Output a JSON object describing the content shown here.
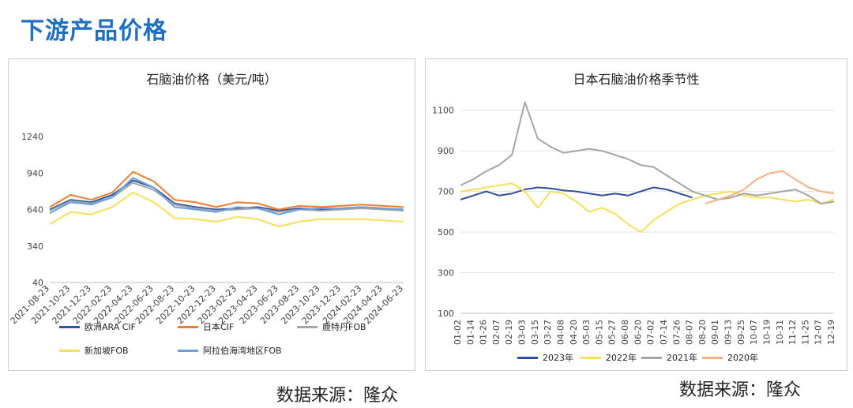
{
  "header": {
    "title": "下游产品价格"
  },
  "source_text": "数据来源：隆众",
  "colors": {
    "title": "#1f6fc5"
  },
  "chart_data": [
    {
      "type": "line",
      "title": "石脑油价格（美元/吨）",
      "ylim": [
        40,
        1240
      ],
      "yticks": [
        "1240",
        "940",
        "640",
        "340",
        "40"
      ],
      "ytick_values": [
        1240,
        940,
        640,
        340,
        40
      ],
      "x": [
        "2021-08-23",
        "2021-10-23",
        "2021-12-23",
        "2022-02-23",
        "2022-04-23",
        "2022-06-23",
        "2022-08-23",
        "2022-10-23",
        "2022-12-23",
        "2023-02-23",
        "2023-04-23",
        "2023-06-23",
        "2023-08-23",
        "2023-10-23",
        "2023-12-23",
        "2024-02-23",
        "2024-04-23",
        "2024-06-23"
      ],
      "series": [
        {
          "name": "欧洲ARA CIF",
          "color": "#2f54a4",
          "values": [
            640,
            720,
            700,
            760,
            880,
            820,
            690,
            660,
            640,
            650,
            660,
            630,
            650,
            640,
            650,
            660,
            650,
            640
          ]
        },
        {
          "name": "日本CIF",
          "color": "#ed7d31",
          "values": [
            660,
            760,
            720,
            780,
            950,
            870,
            720,
            700,
            660,
            700,
            690,
            640,
            670,
            660,
            670,
            680,
            670,
            660
          ]
        },
        {
          "name": "鹿特丹FOB",
          "color": "#a5a5a5",
          "values": [
            630,
            710,
            690,
            740,
            860,
            800,
            680,
            650,
            630,
            640,
            650,
            620,
            640,
            630,
            640,
            650,
            640,
            630
          ]
        },
        {
          "name": "新加坡FOB",
          "color": "#f5e05a",
          "values": [
            520,
            620,
            600,
            660,
            780,
            700,
            570,
            560,
            540,
            580,
            560,
            500,
            540,
            560,
            560,
            560,
            550,
            540
          ]
        },
        {
          "name": "阿拉伯海湾地区FOB",
          "color": "#6aa1dc",
          "values": [
            610,
            700,
            680,
            740,
            900,
            820,
            660,
            640,
            620,
            660,
            650,
            600,
            640,
            650,
            650,
            660,
            650,
            640
          ]
        }
      ]
    },
    {
      "type": "line",
      "title": "日本石脑油价格季节性",
      "ylim": [
        100,
        1200
      ],
      "yticks": [
        "1100",
        "900",
        "700",
        "500",
        "300",
        "100"
      ],
      "ytick_values": [
        1100,
        900,
        700,
        500,
        300,
        100
      ],
      "x": [
        "01-02",
        "01-14",
        "01-26",
        "02-07",
        "02-19",
        "03-03",
        "03-15",
        "03-27",
        "04-08",
        "04-20",
        "05-03",
        "05-15",
        "05-27",
        "06-08",
        "06-20",
        "07-02",
        "07-14",
        "07-26",
        "08-07",
        "08-20",
        "09-01",
        "09-13",
        "09-25",
        "10-07",
        "10-19",
        "10-31",
        "11-12",
        "11-25",
        "12-07",
        "12-19"
      ],
      "series": [
        {
          "name": "2023年",
          "color": "#2f4f9a",
          "values": [
            660,
            680,
            700,
            680,
            690,
            710,
            720,
            715,
            705,
            700,
            690,
            680,
            690,
            680,
            700,
            720,
            710,
            690,
            670,
            null,
            null,
            null,
            null,
            null,
            null,
            null,
            null,
            null,
            null,
            null
          ]
        },
        {
          "name": "2022年",
          "color": "#f5e05a",
          "values": [
            700,
            710,
            720,
            730,
            740,
            700,
            620,
            700,
            690,
            650,
            600,
            620,
            590,
            540,
            500,
            560,
            600,
            640,
            660,
            680,
            690,
            700,
            680,
            670,
            670,
            660,
            650,
            660,
            640,
            660
          ]
        },
        {
          "name": "2021年",
          "color": "#a5a5a5",
          "values": [
            730,
            760,
            800,
            830,
            880,
            1140,
            960,
            920,
            890,
            900,
            910,
            900,
            880,
            860,
            830,
            820,
            780,
            740,
            700,
            680,
            660,
            670,
            690,
            680,
            690,
            700,
            710,
            680,
            640,
            650
          ]
        },
        {
          "name": "2020年",
          "color": "#f4b183",
          "values": [
            null,
            null,
            null,
            null,
            null,
            null,
            null,
            null,
            null,
            null,
            null,
            null,
            null,
            null,
            null,
            null,
            null,
            null,
            null,
            640,
            660,
            680,
            710,
            760,
            790,
            800,
            760,
            720,
            700,
            690
          ]
        }
      ]
    }
  ]
}
